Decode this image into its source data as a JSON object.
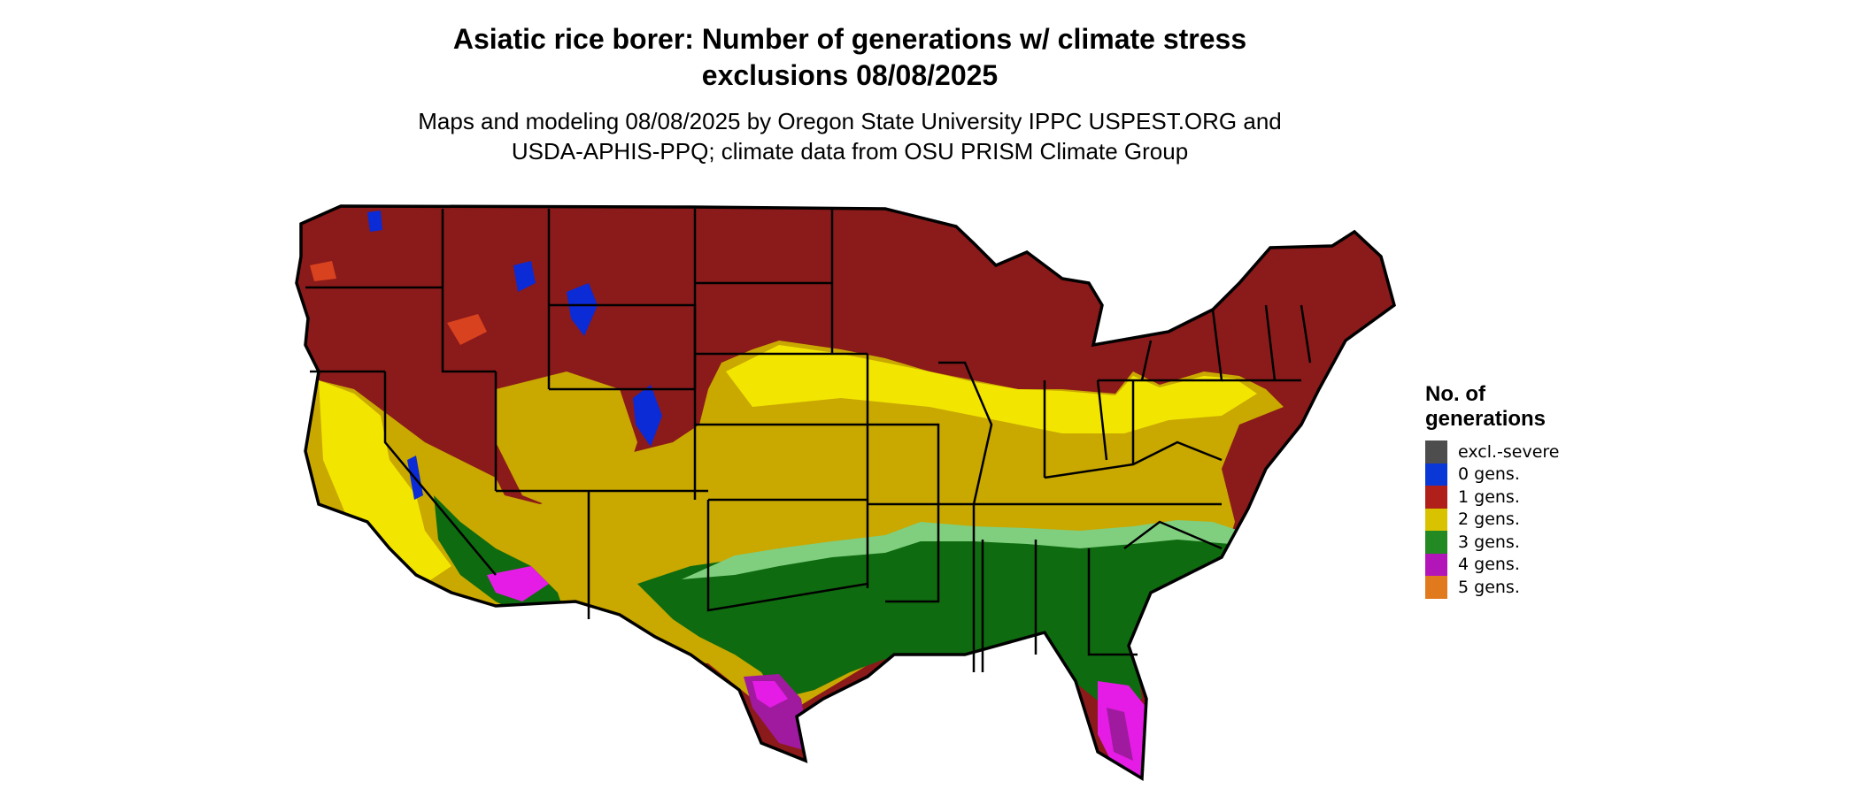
{
  "title_line1": "Asiatic rice borer: Number of generations w/ climate stress",
  "title_line2": "exclusions 08/08/2025",
  "subtitle_line1": "Maps and modeling 08/08/2025 by Oregon State University IPPC USPEST.ORG and",
  "subtitle_line2": "USDA-APHIS-PPQ; climate data from OSU PRISM Climate Group",
  "legend": {
    "title_line1": "No. of",
    "title_line2": "generations",
    "items": [
      {
        "label": "excl.-severe",
        "color": "#4d4d4d"
      },
      {
        "label": "0 gens.",
        "color": "#0a38d6"
      },
      {
        "label": "1 gens.",
        "color": "#b01f1a"
      },
      {
        "label": "2 gens.",
        "color": "#d9c300"
      },
      {
        "label": "3 gens.",
        "color": "#238a23"
      },
      {
        "label": "4 gens.",
        "color": "#b316b8"
      },
      {
        "label": "5 gens.",
        "color": "#e07a1c"
      }
    ]
  },
  "map_colors": {
    "gen1": "#8b1a1a",
    "gen1_light": "#d9421f",
    "gen0": "#0a2bd6",
    "gen2": "#c9a800",
    "gen2_light": "#f2e600",
    "gen3": "#0f6b0f",
    "gen3_light": "#7fcf7f",
    "gen4": "#a01aa0",
    "gen4_light": "#e51ce5",
    "border": "#000000"
  }
}
